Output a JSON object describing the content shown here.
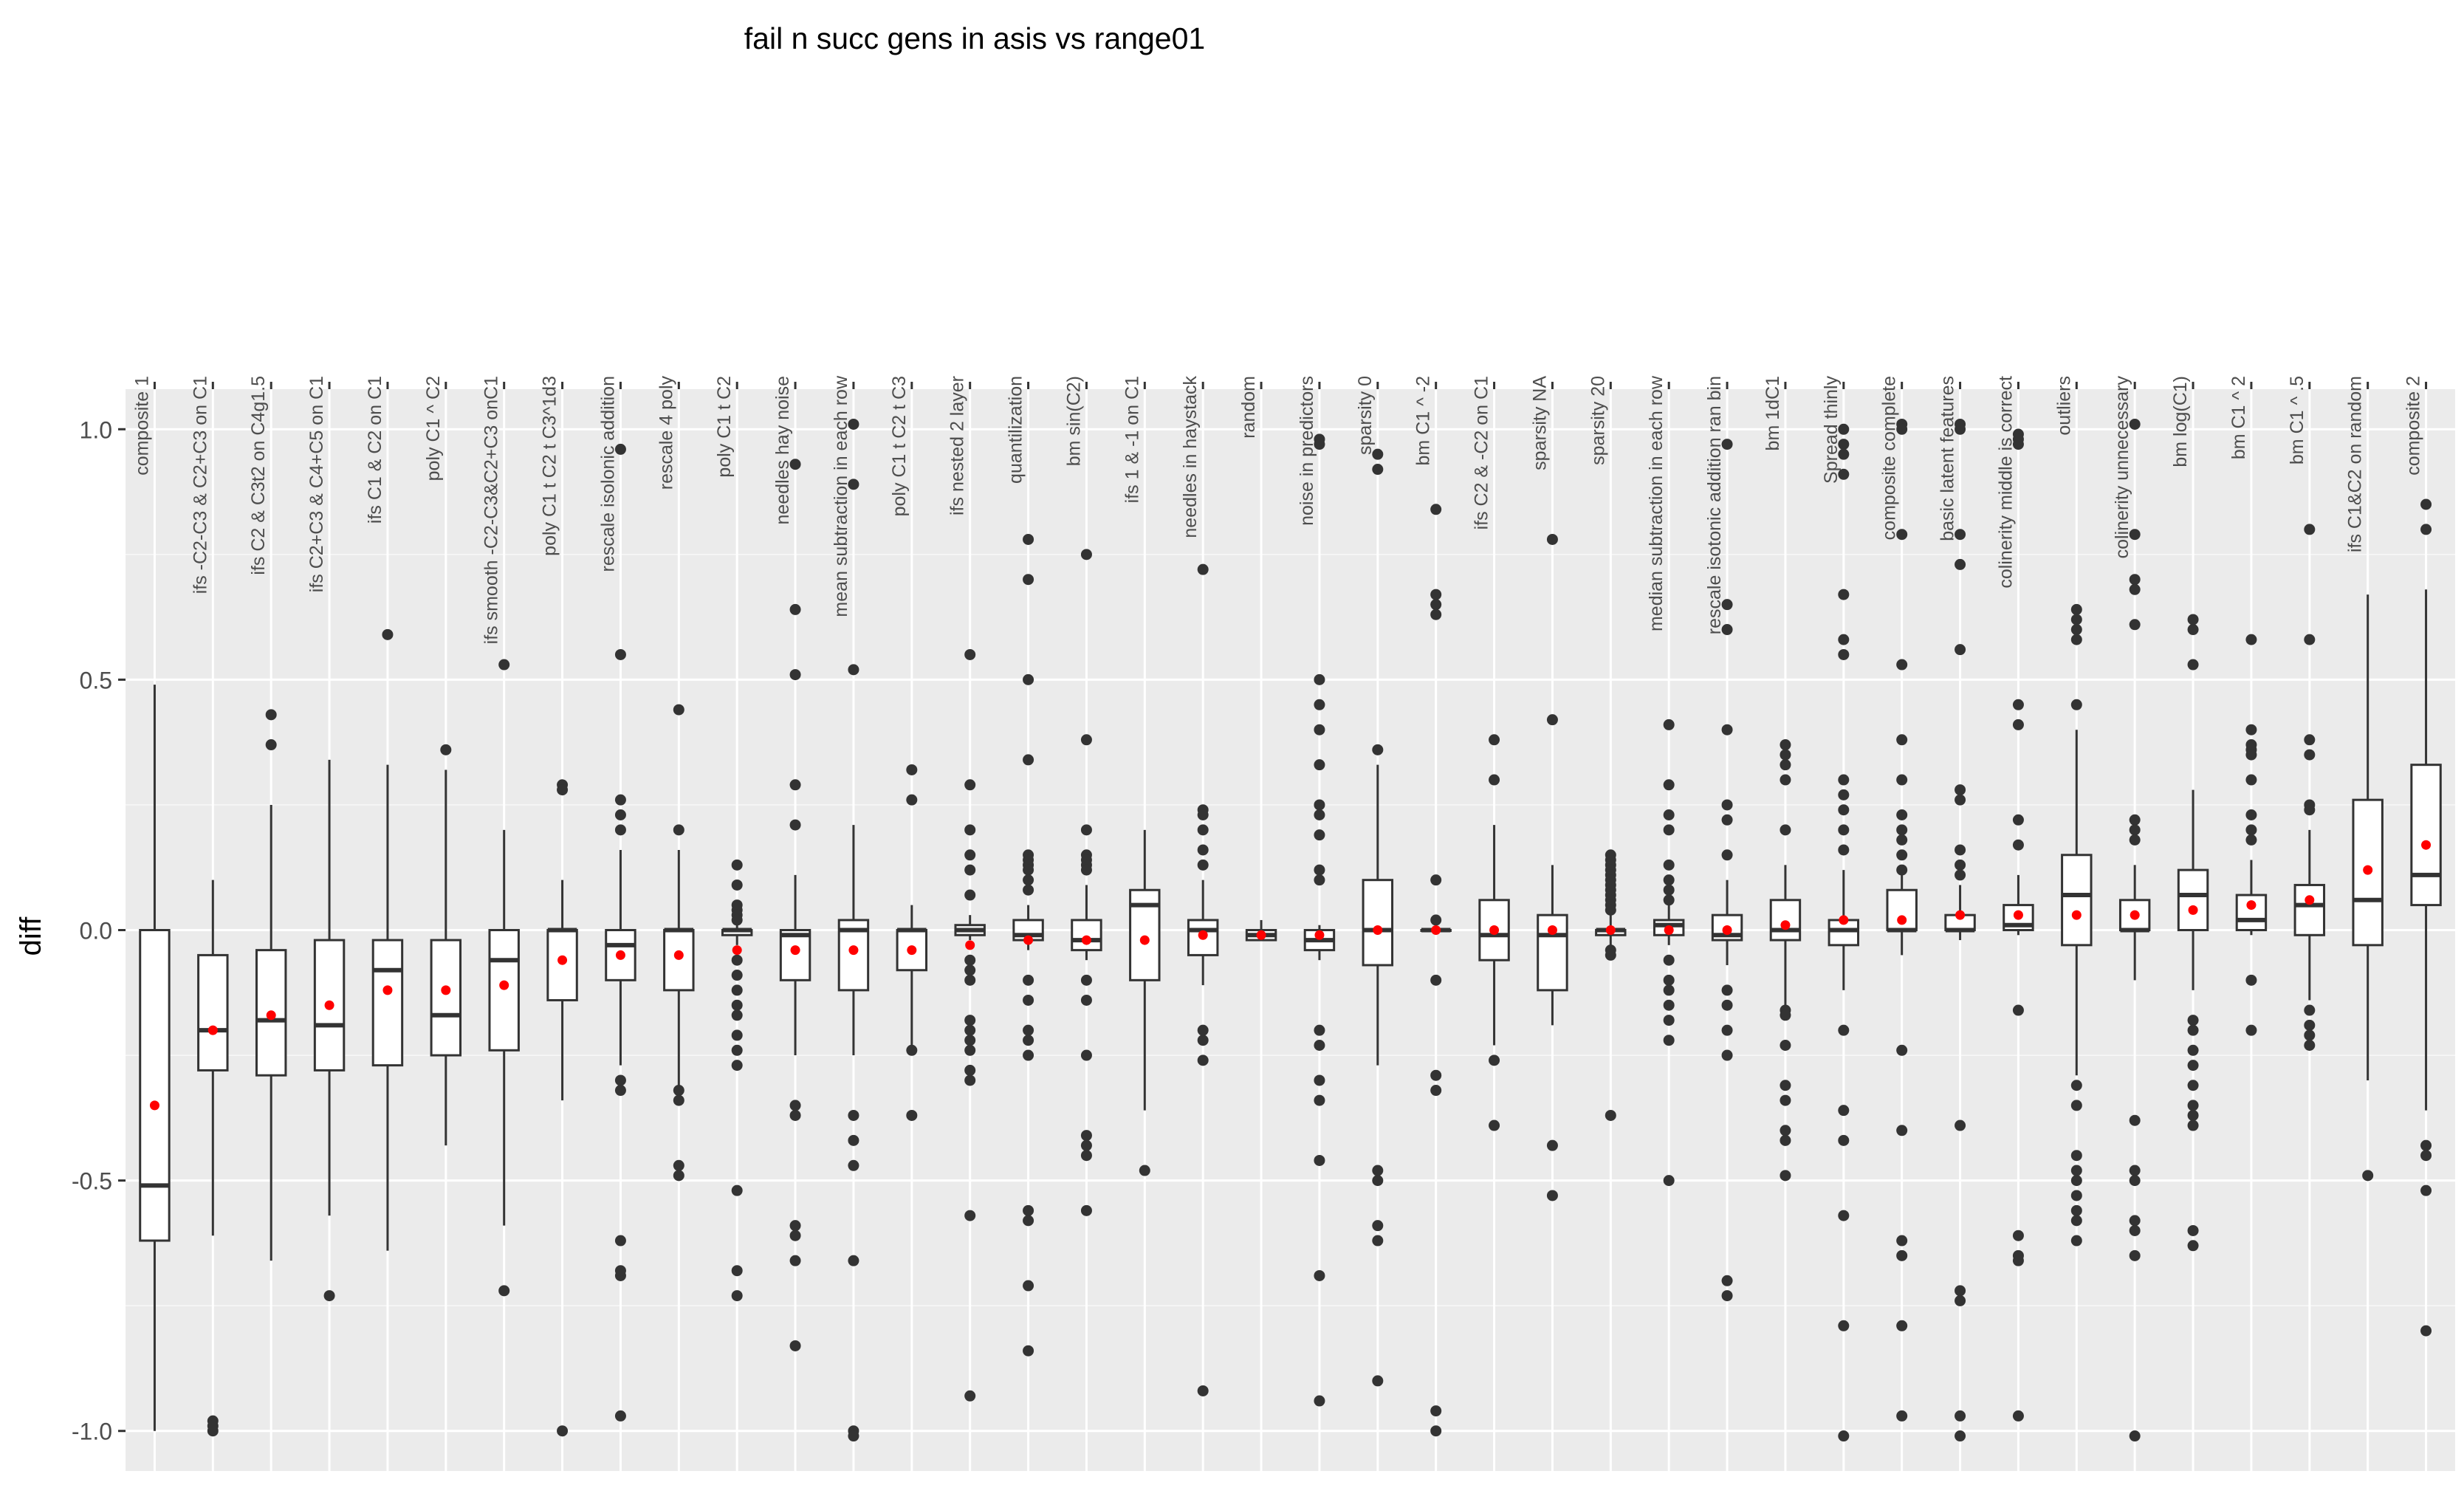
{
  "chart_data": {
    "type": "box",
    "title": "fail n succ gens in asis vs range01",
    "xlabel": "",
    "ylabel": "diff",
    "ylim": [
      -1.08,
      1.08
    ],
    "yticks": [
      1.0,
      0.5,
      0.0,
      -0.5,
      -1.0
    ],
    "ytick_labels": [
      "1.0",
      "0.5",
      "0.0",
      "-0.5",
      "-1.0"
    ],
    "grid": true,
    "mean_marker_color": "#ff0000",
    "categories": [
      {
        "label": "composite 1",
        "lo": -1.0,
        "q1": -0.62,
        "med": -0.51,
        "q3": 0.0,
        "hi": 0.49,
        "mean": -0.35,
        "out": []
      },
      {
        "label": "ifs -C2-C3 & C2+C3 on C1",
        "lo": -0.61,
        "q1": -0.28,
        "med": -0.2,
        "q3": -0.05,
        "hi": 0.1,
        "mean": -0.2,
        "out": [
          -0.98,
          -1.0,
          -0.99
        ]
      },
      {
        "label": "ifs C2 & C3t2 on C4g1.5",
        "lo": -0.66,
        "q1": -0.29,
        "med": -0.18,
        "q3": -0.04,
        "hi": 0.25,
        "mean": -0.17,
        "out": [
          0.43,
          0.37
        ]
      },
      {
        "label": "ifs C2+C3 & C4+C5 on C1",
        "lo": -0.57,
        "q1": -0.28,
        "med": -0.19,
        "q3": -0.02,
        "hi": 0.34,
        "mean": -0.15,
        "out": [
          -0.73
        ]
      },
      {
        "label": "ifs C1 & C2 on C1",
        "lo": -0.64,
        "q1": -0.27,
        "med": -0.08,
        "q3": -0.02,
        "hi": 0.33,
        "mean": -0.12,
        "out": [
          0.59
        ]
      },
      {
        "label": "poly C1 ^ C2",
        "lo": -0.43,
        "q1": -0.25,
        "med": -0.17,
        "q3": -0.02,
        "hi": 0.32,
        "mean": -0.12,
        "out": [
          0.36
        ]
      },
      {
        "label": "ifs smooth -C2-C3&C2+C3 onC1",
        "lo": -0.59,
        "q1": -0.24,
        "med": -0.06,
        "q3": 0.0,
        "hi": 0.2,
        "mean": -0.11,
        "out": [
          0.53,
          -0.72
        ]
      },
      {
        "label": "poly C1 t C2 t C3^1d3",
        "lo": -0.34,
        "q1": -0.14,
        "med": 0.0,
        "q3": 0.0,
        "hi": 0.1,
        "mean": -0.06,
        "out": [
          0.29,
          0.28,
          -1.0
        ]
      },
      {
        "label": "rescale isolonic addition",
        "lo": -0.27,
        "q1": -0.1,
        "med": -0.03,
        "q3": 0.0,
        "hi": 0.16,
        "mean": -0.05,
        "out": [
          0.96,
          0.55,
          0.26,
          0.23,
          0.2,
          -0.3,
          -0.32,
          -0.62,
          -0.69,
          -0.68,
          -0.97
        ]
      },
      {
        "label": "rescale 4 poly",
        "lo": -0.31,
        "q1": -0.12,
        "med": 0.0,
        "q3": 0.0,
        "hi": 0.16,
        "mean": -0.05,
        "out": [
          0.44,
          0.2,
          -0.32,
          -0.34,
          -0.47,
          -0.49
        ]
      },
      {
        "label": "poly C1 t C2",
        "lo": -0.03,
        "q1": -0.01,
        "med": 0.0,
        "q3": 0.0,
        "hi": 0.01,
        "mean": -0.04,
        "out": [
          0.13,
          0.09,
          0.05,
          0.04,
          0.03,
          0.02,
          -0.06,
          -0.09,
          -0.12,
          -0.15,
          -0.17,
          -0.21,
          -0.24,
          -0.27,
          -0.52,
          -0.68,
          -0.73
        ]
      },
      {
        "label": "needles hay noise",
        "lo": -0.25,
        "q1": -0.1,
        "med": -0.01,
        "q3": 0.0,
        "hi": 0.11,
        "mean": -0.04,
        "out": [
          0.93,
          0.64,
          0.51,
          0.29,
          0.21,
          -0.35,
          -0.37,
          -0.59,
          -0.61,
          -0.66,
          -0.83
        ]
      },
      {
        "label": "mean subtraction in each row",
        "lo": -0.25,
        "q1": -0.12,
        "med": 0.0,
        "q3": 0.02,
        "hi": 0.21,
        "mean": -0.04,
        "out": [
          1.01,
          0.89,
          0.52,
          -0.37,
          -0.42,
          -0.47,
          -0.66,
          -1.0,
          -1.01
        ]
      },
      {
        "label": "poly C1 t C2 t C3",
        "lo": -0.23,
        "q1": -0.08,
        "med": 0.0,
        "q3": 0.0,
        "hi": 0.05,
        "mean": -0.04,
        "out": [
          0.32,
          0.26,
          -0.24,
          -0.37
        ]
      },
      {
        "label": "ifs nested 2 layer",
        "lo": -0.02,
        "q1": -0.01,
        "med": 0.0,
        "q3": 0.01,
        "hi": 0.03,
        "mean": -0.03,
        "out": [
          0.55,
          0.29,
          0.2,
          0.15,
          0.12,
          0.07,
          -0.06,
          -0.08,
          -0.1,
          -0.18,
          -0.2,
          -0.22,
          -0.24,
          -0.28,
          -0.3,
          -0.57,
          -0.93
        ]
      },
      {
        "label": "quantilization",
        "lo": -0.04,
        "q1": -0.02,
        "med": -0.01,
        "q3": 0.02,
        "hi": 0.05,
        "mean": -0.02,
        "out": [
          0.78,
          0.7,
          0.5,
          0.34,
          0.15,
          0.14,
          0.13,
          0.12,
          0.1,
          0.08,
          -0.1,
          -0.14,
          -0.2,
          -0.22,
          -0.25,
          -0.56,
          -0.58,
          -0.71,
          -0.84
        ]
      },
      {
        "label": "bm sin(C2)",
        "lo": -0.06,
        "q1": -0.04,
        "med": -0.02,
        "q3": 0.02,
        "hi": 0.09,
        "mean": -0.02,
        "out": [
          0.75,
          0.38,
          0.2,
          0.15,
          0.14,
          0.13,
          0.12,
          -0.1,
          -0.14,
          -0.25,
          -0.41,
          -0.43,
          -0.45,
          -0.56
        ]
      },
      {
        "label": "ifs 1 & -1 on C1",
        "lo": -0.36,
        "q1": -0.1,
        "med": 0.05,
        "q3": 0.08,
        "hi": 0.2,
        "mean": -0.02,
        "out": [
          -0.48
        ]
      },
      {
        "label": "needles in haystack",
        "lo": -0.11,
        "q1": -0.05,
        "med": 0.0,
        "q3": 0.02,
        "hi": 0.1,
        "mean": -0.01,
        "out": [
          0.72,
          0.24,
          0.23,
          0.2,
          0.16,
          0.13,
          -0.2,
          -0.22,
          -0.26,
          -0.92
        ]
      },
      {
        "label": "random",
        "lo": -0.02,
        "q1": -0.02,
        "med": -0.01,
        "q3": 0.0,
        "hi": 0.02,
        "mean": -0.01,
        "out": []
      },
      {
        "label": "noise in predictors",
        "lo": -0.06,
        "q1": -0.04,
        "med": -0.02,
        "q3": 0.0,
        "hi": 0.01,
        "mean": -0.01,
        "out": [
          0.98,
          0.97,
          0.5,
          0.45,
          0.4,
          0.33,
          0.25,
          0.23,
          0.19,
          0.12,
          0.1,
          -0.2,
          -0.23,
          -0.3,
          -0.34,
          -0.46,
          -0.69,
          -0.94
        ]
      },
      {
        "label": "sparsity 0",
        "lo": -0.27,
        "q1": -0.07,
        "med": 0.0,
        "q3": 0.1,
        "hi": 0.33,
        "mean": 0.0,
        "out": [
          0.95,
          0.92,
          0.36,
          -0.48,
          -0.5,
          -0.59,
          -0.62,
          -0.9
        ]
      },
      {
        "label": "bm C1 ^ -2",
        "lo": 0.0,
        "q1": 0.0,
        "med": 0.0,
        "q3": 0.0,
        "hi": 0.01,
        "mean": 0.0,
        "out": [
          0.84,
          0.67,
          0.65,
          0.63,
          0.1,
          0.02,
          -0.1,
          -0.29,
          -0.32,
          -0.96,
          -1.0
        ]
      },
      {
        "label": "ifs C2 & -C2 on C1",
        "lo": -0.23,
        "q1": -0.06,
        "med": -0.01,
        "q3": 0.06,
        "hi": 0.21,
        "mean": 0.0,
        "out": [
          0.38,
          0.3,
          -0.26,
          -0.39
        ]
      },
      {
        "label": "sparsity NA",
        "lo": -0.19,
        "q1": -0.12,
        "med": -0.01,
        "q3": 0.03,
        "hi": 0.13,
        "mean": 0.0,
        "out": [
          0.78,
          0.42,
          -0.43,
          -0.53
        ]
      },
      {
        "label": "sparsity 20",
        "lo": -0.03,
        "q1": -0.01,
        "med": 0.0,
        "q3": 0.0,
        "hi": 0.03,
        "mean": 0.0,
        "out": [
          0.15,
          0.14,
          0.13,
          0.12,
          0.11,
          0.1,
          0.09,
          0.08,
          0.07,
          0.06,
          0.05,
          0.04,
          -0.04,
          -0.05,
          -0.37
        ]
      },
      {
        "label": "median subtraction in each row",
        "lo": -0.03,
        "q1": -0.01,
        "med": 0.01,
        "q3": 0.02,
        "hi": 0.05,
        "mean": 0.0,
        "out": [
          0.41,
          0.29,
          0.23,
          0.2,
          0.13,
          0.1,
          0.08,
          0.06,
          -0.06,
          -0.1,
          -0.12,
          -0.15,
          -0.18,
          -0.22,
          -0.5
        ]
      },
      {
        "label": "rescale isotonic addition ran bin",
        "lo": -0.07,
        "q1": -0.02,
        "med": -0.01,
        "q3": 0.03,
        "hi": 0.1,
        "mean": 0.0,
        "out": [
          0.97,
          0.65,
          0.6,
          0.4,
          0.25,
          0.22,
          0.15,
          -0.12,
          -0.15,
          -0.2,
          -0.25,
          -0.7,
          -0.73
        ]
      },
      {
        "label": "bm 1dC1",
        "lo": -0.15,
        "q1": -0.02,
        "med": 0.0,
        "q3": 0.06,
        "hi": 0.13,
        "mean": 0.01,
        "out": [
          0.37,
          0.35,
          0.33,
          0.3,
          0.2,
          -0.16,
          -0.17,
          -0.23,
          -0.31,
          -0.34,
          -0.4,
          -0.42,
          -0.49
        ]
      },
      {
        "label": "Spread thinly",
        "lo": -0.12,
        "q1": -0.03,
        "med": 0.0,
        "q3": 0.02,
        "hi": 0.12,
        "mean": 0.02,
        "out": [
          1.0,
          0.97,
          0.95,
          0.91,
          0.67,
          0.58,
          0.55,
          0.3,
          0.27,
          0.24,
          0.2,
          0.16,
          -0.2,
          -0.36,
          -0.42,
          -0.57,
          -0.79,
          -1.01
        ]
      },
      {
        "label": "composite complete",
        "lo": -0.05,
        "q1": 0.0,
        "med": 0.0,
        "q3": 0.08,
        "hi": 0.13,
        "mean": 0.02,
        "out": [
          1.01,
          1.0,
          0.79,
          0.53,
          0.38,
          0.3,
          0.23,
          0.2,
          0.18,
          0.15,
          0.12,
          -0.24,
          -0.4,
          -0.62,
          -0.65,
          -0.79,
          -0.97
        ]
      },
      {
        "label": "basic latent features",
        "lo": -0.02,
        "q1": 0.0,
        "med": 0.0,
        "q3": 0.03,
        "hi": 0.09,
        "mean": 0.03,
        "out": [
          1.01,
          1.0,
          0.79,
          0.73,
          0.56,
          0.28,
          0.26,
          0.16,
          0.13,
          0.11,
          -0.39,
          -0.72,
          -0.74,
          -0.97,
          -1.01
        ]
      },
      {
        "label": "colinerity middle is correct",
        "lo": -0.01,
        "q1": 0.0,
        "med": 0.01,
        "q3": 0.05,
        "hi": 0.11,
        "mean": 0.03,
        "out": [
          0.99,
          0.98,
          0.97,
          0.45,
          0.41,
          0.22,
          0.17,
          -0.16,
          -0.61,
          -0.65,
          -0.66,
          -0.97
        ]
      },
      {
        "label": "outliers",
        "lo": -0.29,
        "q1": -0.03,
        "med": 0.07,
        "q3": 0.15,
        "hi": 0.4,
        "mean": 0.03,
        "out": [
          0.64,
          0.62,
          0.6,
          0.58,
          0.45,
          -0.31,
          -0.35,
          -0.45,
          -0.48,
          -0.5,
          -0.53,
          -0.56,
          -0.58,
          -0.62
        ]
      },
      {
        "label": "colinerity unnecessary",
        "lo": -0.1,
        "q1": 0.0,
        "med": 0.0,
        "q3": 0.06,
        "hi": 0.13,
        "mean": 0.03,
        "out": [
          1.01,
          0.79,
          0.7,
          0.68,
          0.61,
          0.22,
          0.2,
          0.18,
          -0.38,
          -0.48,
          -0.5,
          -0.58,
          -0.6,
          -0.65,
          -1.01
        ]
      },
      {
        "label": "bm log(C1)",
        "lo": -0.12,
        "q1": 0.0,
        "med": 0.07,
        "q3": 0.12,
        "hi": 0.28,
        "mean": 0.04,
        "out": [
          0.62,
          0.6,
          0.53,
          -0.18,
          -0.2,
          -0.24,
          -0.27,
          -0.31,
          -0.35,
          -0.37,
          -0.39,
          -0.6,
          -0.63
        ]
      },
      {
        "label": "bm C1 ^ 2",
        "lo": -0.01,
        "q1": 0.0,
        "med": 0.02,
        "q3": 0.07,
        "hi": 0.14,
        "mean": 0.05,
        "out": [
          0.58,
          0.4,
          0.37,
          0.36,
          0.35,
          0.3,
          0.23,
          0.2,
          0.18,
          -0.1,
          -0.2
        ]
      },
      {
        "label": "bm C1 ^ .5",
        "lo": -0.14,
        "q1": -0.01,
        "med": 0.05,
        "q3": 0.09,
        "hi": 0.2,
        "mean": 0.06,
        "out": [
          0.8,
          0.58,
          0.38,
          0.35,
          0.25,
          0.24,
          -0.16,
          -0.19,
          -0.21,
          -0.23
        ]
      },
      {
        "label": "ifs C1&C2 on random",
        "lo": -0.3,
        "q1": -0.03,
        "med": 0.06,
        "q3": 0.26,
        "hi": 0.67,
        "mean": 0.12,
        "out": [
          -0.49
        ]
      },
      {
        "label": "composite 2",
        "lo": -0.36,
        "q1": 0.05,
        "med": 0.11,
        "q3": 0.33,
        "hi": 0.68,
        "mean": 0.17,
        "out": [
          0.85,
          0.8,
          -0.43,
          -0.45,
          -0.52,
          -0.8
        ]
      }
    ]
  }
}
